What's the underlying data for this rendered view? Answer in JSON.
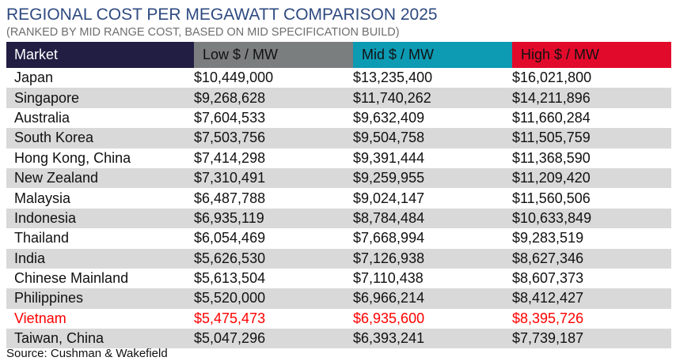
{
  "chart_data": {
    "type": "table",
    "title": "REGIONAL COST PER MEGAWATT COMPARISON 2025",
    "subtitle": "(RANKED BY MID RANGE COST, BASED ON MID SPECIFICATION BUILD)",
    "columns": [
      "Market",
      "Low $ / MW",
      "Mid $ / MW",
      "High $ / MW"
    ],
    "column_colors": [
      "#221d42",
      "#7b7e7f",
      "#0d9ab3",
      "#e20a2b"
    ],
    "highlight_color": "#ff0000",
    "rows": [
      {
        "market": "Japan",
        "low": "$10,449,000",
        "mid": "$13,235,400",
        "high": "$16,021,800"
      },
      {
        "market": "Singapore",
        "low": "$9,268,628",
        "mid": "$11,740,262",
        "high": "$14,211,896"
      },
      {
        "market": "Australia",
        "low": "$7,604,533",
        "mid": "$9,632,409",
        "high": "$11,660,284"
      },
      {
        "market": "South Korea",
        "low": "$7,503,756",
        "mid": "$9,504,758",
        "high": "$11,505,759"
      },
      {
        "market": "Hong Kong, China",
        "low": "$7,414,298",
        "mid": "$9,391,444",
        "high": "$11,368,590"
      },
      {
        "market": "New Zealand",
        "low": "$7,310,491",
        "mid": "$9,259,955",
        "high": "$11,209,420"
      },
      {
        "market": "Malaysia",
        "low": "$6,487,788",
        "mid": "$9,024,147",
        "high": "$11,560,506"
      },
      {
        "market": "Indonesia",
        "low": "$6,935,119",
        "mid": "$8,784,484",
        "high": "$10,633,849"
      },
      {
        "market": "Thailand",
        "low": "$6,054,469",
        "mid": "$7,668,994",
        "high": "$9,283,519"
      },
      {
        "market": "India",
        "low": "$5,626,530",
        "mid": "$7,126,938",
        "high": "$8,627,346"
      },
      {
        "market": "Chinese Mainland",
        "low": "$5,613,504",
        "mid": "$7,110,438",
        "high": "$8,607,373"
      },
      {
        "market": "Philippines",
        "low": "$5,520,000",
        "mid": "$6,966,214",
        "high": "$8,412,427"
      },
      {
        "market": "Vietnam",
        "low": "$5,475,473",
        "mid": "$6,935,600",
        "high": "$8,395,726",
        "highlight": true
      },
      {
        "market": "Taiwan, China",
        "low": "$5,047,296",
        "mid": "$6,393,241",
        "high": "$7,739,187"
      }
    ],
    "source": "Source: Cushman & Wakefield"
  }
}
